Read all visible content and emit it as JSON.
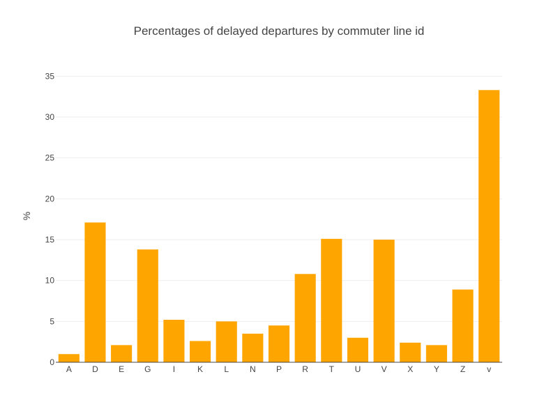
{
  "colors": {
    "bar": "#FFA500",
    "grid": "#eeeeee",
    "text": "#444444",
    "background": "#ffffff"
  },
  "chart_data": {
    "type": "bar",
    "title": "Percentages of delayed departures by commuter line id",
    "xlabel": "",
    "ylabel": "%",
    "categories": [
      "A",
      "D",
      "E",
      "G",
      "I",
      "K",
      "L",
      "N",
      "P",
      "R",
      "T",
      "U",
      "V",
      "X",
      "Y",
      "Z",
      "v"
    ],
    "values": [
      1.0,
      17.1,
      2.1,
      13.8,
      5.2,
      2.6,
      5.0,
      3.5,
      4.5,
      10.8,
      15.1,
      3.0,
      15.0,
      2.4,
      2.1,
      8.9,
      33.3
    ],
    "ylim": [
      0,
      37.5
    ],
    "yticks": [
      0,
      5,
      10,
      15,
      20,
      25,
      30,
      35
    ],
    "grid": true,
    "legend": "none"
  }
}
